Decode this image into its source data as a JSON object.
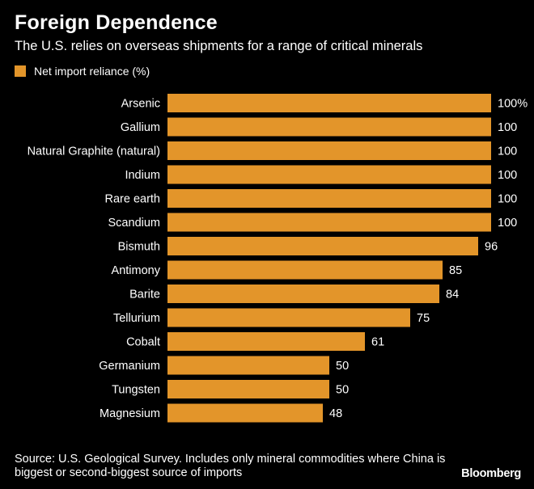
{
  "header": {
    "title": "Foreign Dependence",
    "subtitle": "The U.S. relies on overseas shipments for a range of critical minerals"
  },
  "legend": {
    "label": "Net import reliance (%)",
    "color": "#E3952A",
    "icon": "square-swatch"
  },
  "colors": {
    "background": "#000000",
    "bar": "#E3952A",
    "text": "#FFFFFF"
  },
  "chart_data": {
    "type": "bar",
    "orientation": "horizontal",
    "categories": [
      "Arsenic",
      "Gallium",
      "Natural Graphite (natural)",
      "Indium",
      "Rare earth",
      "Scandium",
      "Bismuth",
      "Antimony",
      "Barite",
      "Tellurium",
      "Cobalt",
      "Germanium",
      "Tungsten",
      "Magnesium"
    ],
    "values": [
      100,
      100,
      100,
      100,
      100,
      100,
      96,
      85,
      84,
      75,
      61,
      50,
      50,
      48
    ],
    "value_labels": [
      "100%",
      "100",
      "100",
      "100",
      "100",
      "100",
      "96",
      "85",
      "84",
      "75",
      "61",
      "50",
      "50",
      "48"
    ],
    "series": [
      {
        "name": "Net import reliance (%)",
        "values": [
          100,
          100,
          100,
          100,
          100,
          100,
          96,
          85,
          84,
          75,
          61,
          50,
          50,
          48
        ]
      }
    ],
    "xlim": [
      0,
      100
    ],
    "grid": false,
    "legend_position": "top-left"
  },
  "footer": {
    "source": "Source: U.S. Geological Survey. Includes only mineral commodities where China is biggest or second-biggest source of imports",
    "brand": "Bloomberg"
  }
}
